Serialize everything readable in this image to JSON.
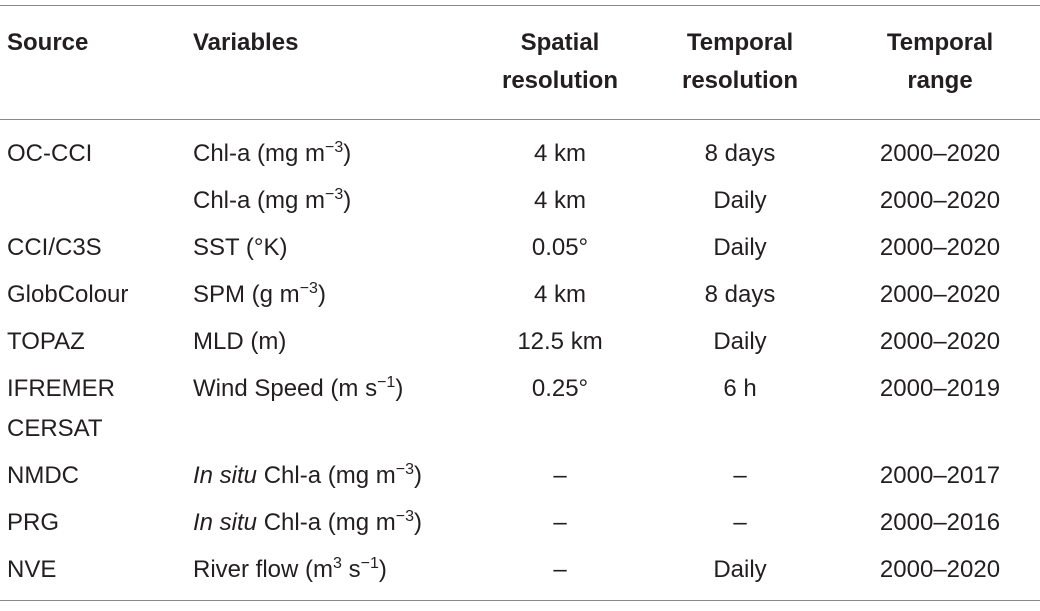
{
  "table": {
    "header": [
      "Source",
      "Variables",
      "Spatial resolution",
      "Temporal resolution",
      "Temporal range"
    ],
    "rows": [
      [
        "OC-CCI",
        [
          "Chl-a (mg m",
          {
            "sup": "−3"
          },
          ")"
        ],
        "4 km",
        "8 days",
        "2000–2020"
      ],
      [
        "",
        [
          "Chl-a (mg m",
          {
            "sup": "−3"
          },
          ")"
        ],
        "4 km",
        "Daily",
        "2000–2020"
      ],
      [
        "CCI/C3S",
        "SST (°K)",
        "0.05°",
        "Daily",
        "2000–2020"
      ],
      [
        "GlobColour",
        [
          "SPM (g m",
          {
            "sup": "−3"
          },
          ")"
        ],
        "4 km",
        "8 days",
        "2000–2020"
      ],
      [
        "TOPAZ",
        "MLD (m)",
        "12.5 km",
        "Daily",
        "2000–2020"
      ],
      [
        "IFREMER CERSAT",
        [
          "Wind Speed (m s",
          {
            "sup": "−1"
          },
          ")"
        ],
        "0.25°",
        "6 h",
        "2000–2019"
      ],
      [
        "NMDC",
        [
          {
            "i": "In situ"
          },
          " Chl-a (mg m",
          {
            "sup": "−3"
          },
          ")"
        ],
        "–",
        "–",
        "2000–2017"
      ],
      [
        "PRG",
        [
          {
            "i": "In situ"
          },
          " Chl-a (mg m",
          {
            "sup": "−3"
          },
          ")"
        ],
        "–",
        "–",
        "2000–2016"
      ],
      [
        "NVE",
        [
          "River flow (m",
          {
            "sup": "3"
          },
          " s",
          {
            "sup": "−1"
          },
          ")"
        ],
        "–",
        "Daily",
        "2000–2020"
      ]
    ]
  }
}
